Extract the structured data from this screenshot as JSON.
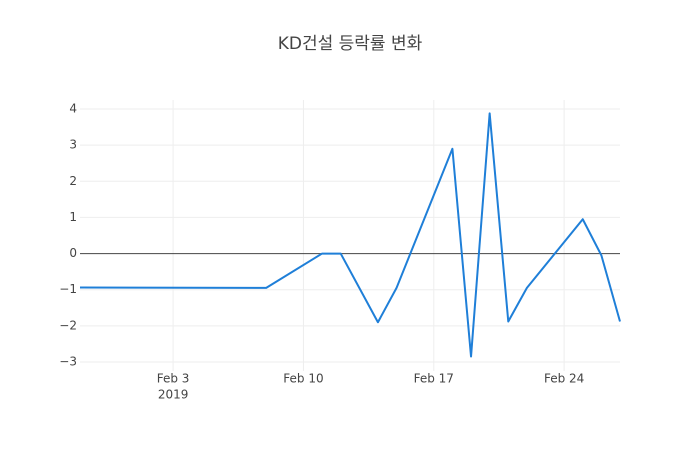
{
  "chart_data": {
    "type": "line",
    "title": "KD건설 등락률 변화",
    "x": [
      "2019-01-29",
      "2019-02-08",
      "2019-02-11",
      "2019-02-12",
      "2019-02-14",
      "2019-02-15",
      "2019-02-18",
      "2019-02-19",
      "2019-02-20",
      "2019-02-21",
      "2019-02-22",
      "2019-02-25",
      "2019-02-26",
      "2019-02-27"
    ],
    "series": [
      {
        "name": "등락률",
        "color": "#1f7fd8",
        "values": [
          -0.94,
          -0.95,
          0,
          0,
          -1.9,
          -0.95,
          2.9,
          -2.85,
          3.88,
          -1.88,
          -0.95,
          0.95,
          -0.05,
          -1.88
        ]
      }
    ],
    "xlim": [
      "2019-01-29",
      "2019-02-27"
    ],
    "xticks": [
      {
        "value": "2019-02-03",
        "label": "Feb 3"
      },
      {
        "value": "2019-02-10",
        "label": "Feb 10"
      },
      {
        "value": "2019-02-17",
        "label": "Feb 17"
      },
      {
        "value": "2019-02-24",
        "label": "Feb 24"
      }
    ],
    "xtick_year": "2019",
    "ylim": [
      -3.25,
      4.25
    ],
    "yticks": [
      {
        "value": -3,
        "label": "−3"
      },
      {
        "value": -2,
        "label": "−2"
      },
      {
        "value": -1,
        "label": "−1"
      },
      0,
      1,
      2,
      3,
      4
    ],
    "grid": true,
    "zero_line": true
  }
}
